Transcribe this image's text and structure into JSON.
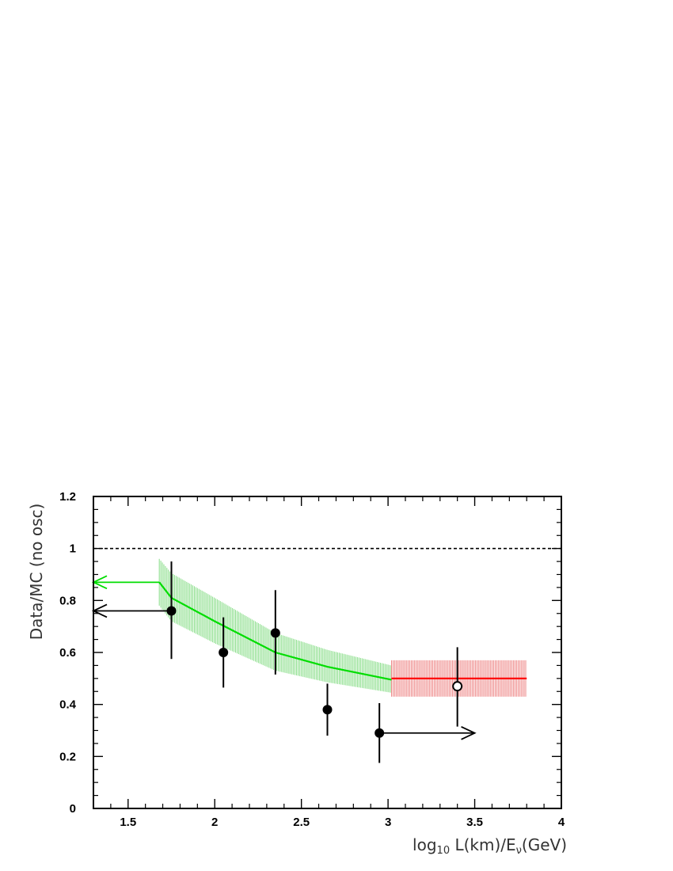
{
  "chart_data": {
    "type": "scatter",
    "xlabel": "log₁₀ L(km)/Eν(GeV)",
    "xlabel_parts": {
      "prefix": "log",
      "sub": "10",
      "mid": " L(km)/E",
      "nu": "ν",
      "suffix": "(GeV)"
    },
    "ylabel": "Data/MC (no osc)",
    "xlim": [
      1.3,
      4.0
    ],
    "ylim": [
      0,
      1.2
    ],
    "x_ticks": [
      "1.5",
      "2",
      "2.5",
      "3",
      "3.5",
      "4"
    ],
    "x_tick_values": [
      1.5,
      2.0,
      2.5,
      3.0,
      3.5,
      4.0
    ],
    "y_ticks": [
      "0",
      "0.2",
      "0.4",
      "0.6",
      "0.8",
      "1",
      "1.2"
    ],
    "y_tick_values": [
      0,
      0.2,
      0.4,
      0.6,
      0.8,
      1.0,
      1.2
    ],
    "reference_line": {
      "y": 1.0,
      "style": "dashed",
      "color": "#000000"
    },
    "data_points": [
      {
        "x": 1.75,
        "y": 0.76,
        "err_low": 0.575,
        "err_high": 0.95,
        "marker": "filled"
      },
      {
        "x": 2.05,
        "y": 0.6,
        "err_low": 0.465,
        "err_high": 0.735,
        "marker": "filled"
      },
      {
        "x": 2.35,
        "y": 0.675,
        "err_low": 0.515,
        "err_high": 0.84,
        "marker": "filled"
      },
      {
        "x": 2.65,
        "y": 0.38,
        "err_low": 0.28,
        "err_high": 0.48,
        "marker": "filled"
      },
      {
        "x": 2.95,
        "y": 0.29,
        "err_low": 0.175,
        "err_high": 0.405,
        "marker": "filled"
      },
      {
        "x": 3.4,
        "y": 0.47,
        "err_low": 0.315,
        "err_high": 0.62,
        "marker": "open"
      }
    ],
    "arrows": [
      {
        "from_x": 1.75,
        "to_x": 1.3,
        "y": 0.76,
        "color": "#000000"
      },
      {
        "from_x": 2.95,
        "to_x": 3.5,
        "y": 0.29,
        "color": "#000000"
      },
      {
        "from_x": 1.68,
        "to_x": 1.3,
        "y": 0.87,
        "color": "#00dd00"
      }
    ],
    "series": [
      {
        "color": "#00dd00",
        "band_color": "#88dd88",
        "line": [
          [
            1.68,
            0.87
          ],
          [
            1.75,
            0.81
          ],
          [
            2.0,
            0.72
          ],
          [
            2.35,
            0.6
          ],
          [
            2.65,
            0.545
          ],
          [
            3.02,
            0.495
          ]
        ],
        "band": [
          [
            1.68,
            0.78,
            0.96
          ],
          [
            1.75,
            0.72,
            0.905
          ],
          [
            2.0,
            0.635,
            0.81
          ],
          [
            2.35,
            0.53,
            0.675
          ],
          [
            2.65,
            0.485,
            0.61
          ],
          [
            3.02,
            0.445,
            0.55
          ]
        ]
      },
      {
        "color": "#ff0000",
        "band_color": "#ee8888",
        "line": [
          [
            3.02,
            0.5
          ],
          [
            3.8,
            0.5
          ]
        ],
        "band": [
          [
            3.02,
            0.43,
            0.57
          ],
          [
            3.8,
            0.43,
            0.57
          ]
        ]
      }
    ],
    "grid": false,
    "legend": "none"
  }
}
